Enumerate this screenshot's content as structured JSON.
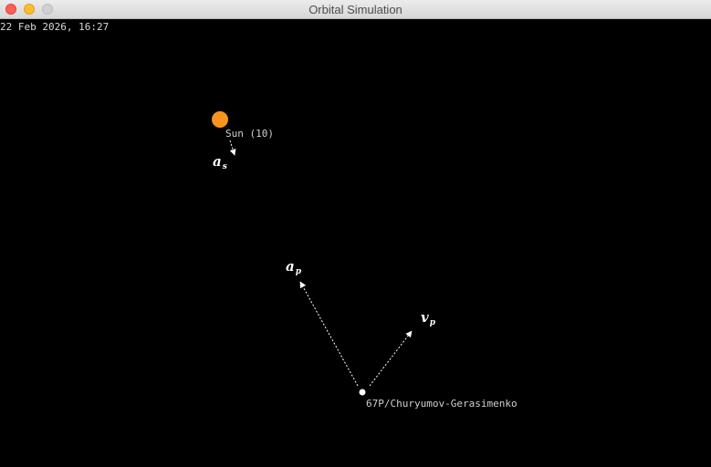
{
  "window": {
    "title": "Orbital Simulation"
  },
  "simulation": {
    "datetime": "22 Feb 2026, 16:27",
    "sun": {
      "label": "Sun (10)",
      "color": "#f7941d"
    },
    "body": {
      "label": "67P/Churyumov-Gerasimenko",
      "color": "#ffffff"
    },
    "vectors": {
      "sun_accel": {
        "symbol": "a",
        "subscript": "s"
      },
      "body_accel": {
        "symbol": "a",
        "subscript": "p"
      },
      "body_velocity": {
        "symbol": "v",
        "subscript": "p"
      }
    }
  }
}
